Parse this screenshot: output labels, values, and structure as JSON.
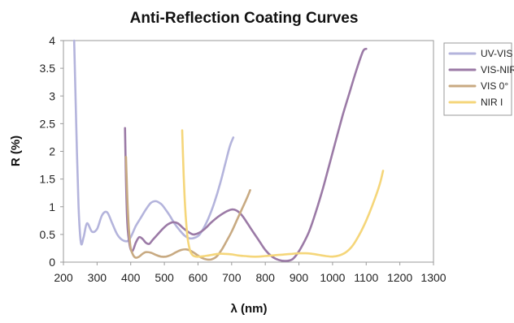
{
  "chart_data": {
    "type": "line",
    "title": "Anti-Reflection Coating Curves",
    "xlabel": "λ (nm)",
    "ylabel": "R (%)",
    "xlim": [
      200,
      1300
    ],
    "ylim": [
      0,
      4
    ],
    "xticks": [
      "200",
      "300",
      "400",
      "500",
      "600",
      "700",
      "800",
      "900",
      "1000",
      "1100",
      "1200",
      "1300"
    ],
    "yticks": [
      "0",
      "0.5",
      "1",
      "1.5",
      "2",
      "2.5",
      "3",
      "3.5",
      "4"
    ],
    "grid": false,
    "legend": "right",
    "series": [
      {
        "name": "UV-VIS",
        "color": "#b4b4dc",
        "x": [
          232,
          238,
          245,
          252,
          260,
          270,
          285,
          300,
          315,
          330,
          345,
          360,
          375,
          390,
          400,
          415,
          430,
          445,
          460,
          475,
          490,
          500,
          515,
          530,
          545,
          560,
          575,
          590,
          605,
          620,
          635,
          650,
          665,
          680,
          695,
          705
        ],
        "y": [
          4.0,
          2.5,
          1.0,
          0.35,
          0.45,
          0.7,
          0.55,
          0.6,
          0.85,
          0.9,
          0.7,
          0.5,
          0.4,
          0.38,
          0.45,
          0.65,
          0.8,
          0.95,
          1.07,
          1.1,
          1.05,
          0.98,
          0.85,
          0.7,
          0.58,
          0.48,
          0.43,
          0.44,
          0.5,
          0.65,
          0.85,
          1.1,
          1.4,
          1.75,
          2.1,
          2.25
        ]
      },
      {
        "name": "VIS-NIR",
        "color": "#9b7aa6",
        "x": [
          383,
          386,
          390,
          397,
          405,
          415,
          425,
          435,
          445,
          455,
          465,
          480,
          495,
          510,
          525,
          540,
          555,
          570,
          585,
          600,
          620,
          640,
          660,
          680,
          700,
          715,
          730,
          745,
          760,
          780,
          800,
          820,
          840,
          860,
          880,
          895,
          910,
          930,
          950,
          970,
          990,
          1010,
          1030,
          1050,
          1070,
          1090,
          1100
        ],
        "y": [
          2.42,
          1.5,
          0.7,
          0.3,
          0.2,
          0.35,
          0.45,
          0.42,
          0.35,
          0.33,
          0.4,
          0.5,
          0.6,
          0.68,
          0.72,
          0.7,
          0.62,
          0.55,
          0.5,
          0.52,
          0.6,
          0.72,
          0.82,
          0.9,
          0.95,
          0.93,
          0.85,
          0.72,
          0.58,
          0.4,
          0.22,
          0.1,
          0.04,
          0.02,
          0.05,
          0.15,
          0.3,
          0.55,
          0.9,
          1.3,
          1.75,
          2.2,
          2.65,
          3.05,
          3.45,
          3.8,
          3.85
        ]
      },
      {
        "name": "VIS 0°",
        "color": "#c8aa82",
        "x": [
          386,
          388,
          391,
          395,
          400,
          408,
          415,
          425,
          435,
          445,
          460,
          475,
          490,
          505,
          520,
          535,
          550,
          565,
          580,
          595,
          610,
          625,
          640,
          655,
          670,
          685,
          700,
          715,
          730,
          745,
          755
        ],
        "y": [
          1.9,
          1.5,
          1.0,
          0.55,
          0.25,
          0.12,
          0.08,
          0.1,
          0.15,
          0.18,
          0.17,
          0.13,
          0.1,
          0.1,
          0.13,
          0.18,
          0.22,
          0.23,
          0.2,
          0.14,
          0.08,
          0.05,
          0.05,
          0.1,
          0.22,
          0.38,
          0.55,
          0.75,
          0.95,
          1.15,
          1.3
        ]
      },
      {
        "name": "NIR I",
        "color": "#f5d67a",
        "x": [
          553,
          556,
          560,
          565,
          570,
          577,
          585,
          595,
          605,
          620,
          640,
          660,
          680,
          700,
          720,
          740,
          760,
          780,
          800,
          820,
          840,
          860,
          880,
          900,
          920,
          940,
          960,
          980,
          1000,
          1020,
          1040,
          1060,
          1080,
          1100,
          1120,
          1140,
          1150
        ],
        "y": [
          2.38,
          1.8,
          1.2,
          0.7,
          0.4,
          0.2,
          0.12,
          0.1,
          0.1,
          0.11,
          0.13,
          0.15,
          0.15,
          0.14,
          0.12,
          0.11,
          0.1,
          0.1,
          0.11,
          0.12,
          0.13,
          0.14,
          0.15,
          0.16,
          0.16,
          0.15,
          0.13,
          0.11,
          0.1,
          0.12,
          0.18,
          0.3,
          0.5,
          0.75,
          1.05,
          1.4,
          1.65
        ]
      }
    ]
  }
}
